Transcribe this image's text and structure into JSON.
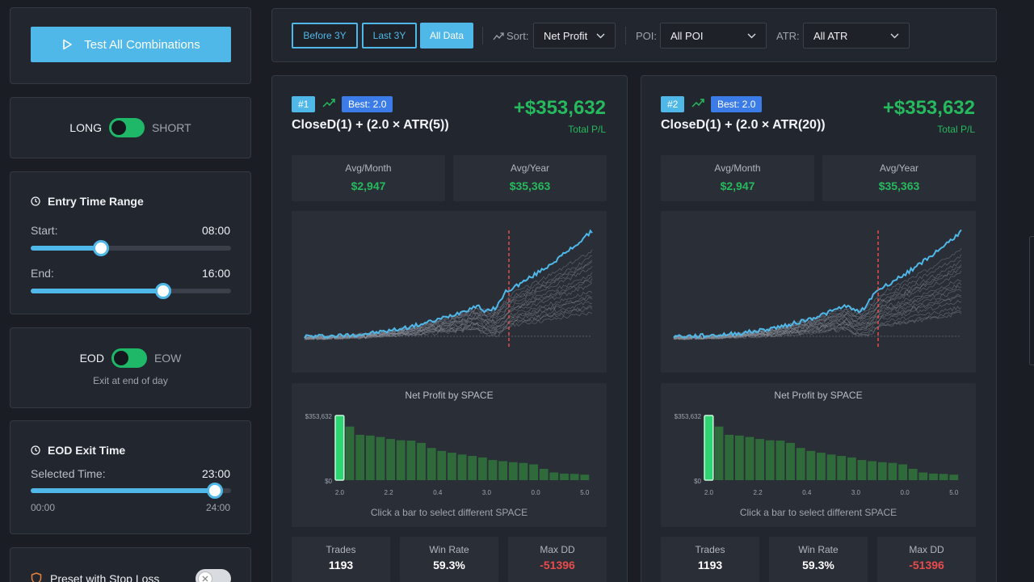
{
  "sidebar": {
    "test_all_label": "Test All Combinations",
    "direction": {
      "left": "LONG",
      "right": "SHORT"
    },
    "entry_range": {
      "title": "Entry Time Range",
      "start_label": "Start:",
      "start_value": "08:00",
      "start_fraction": 0.35,
      "end_label": "End:",
      "end_value": "16:00",
      "end_fraction": 0.66
    },
    "exit_mode": {
      "left": "EOD",
      "right": "EOW",
      "subtitle": "Exit at end of day"
    },
    "eod_exit": {
      "title": "EOD Exit Time",
      "selected_label": "Selected Time:",
      "selected_value": "23:00",
      "fraction": 0.92,
      "min": "00:00",
      "max": "24:00"
    },
    "preset": {
      "label": "Preset with Stop Loss"
    }
  },
  "filters": {
    "buttons": [
      "Before 3Y",
      "Last 3Y",
      "All Data"
    ],
    "active_index": 2,
    "sort_label": "Sort:",
    "sort_value": "Net Profit",
    "poi_label": "POI:",
    "poi_value": "All POI",
    "atr_label": "ATR:",
    "atr_value": "All ATR"
  },
  "cards": [
    {
      "rank": "#1",
      "best": "Best: 2.0",
      "name": "CloseD(1) + (2.0 × ATR(5))",
      "total_pl": "+$353,632",
      "total_pl_label": "Total P/L",
      "avg_month_label": "Avg/Month",
      "avg_month": "$2,947",
      "avg_year_label": "Avg/Year",
      "avg_year": "$35,363",
      "bar_title": "Net Profit by SPACE",
      "bar_hint": "Click a bar to select different SPACE",
      "trades_label": "Trades",
      "trades": "1193",
      "winrate_label": "Win Rate",
      "winrate": "59.3%",
      "maxdd_label": "Max DD",
      "maxdd": "-51396"
    },
    {
      "rank": "#2",
      "best": "Best: 2.0",
      "name": "CloseD(1) + (2.0 × ATR(20))",
      "total_pl": "+$353,632",
      "total_pl_label": "Total P/L",
      "avg_month_label": "Avg/Month",
      "avg_month": "$2,947",
      "avg_year_label": "Avg/Year",
      "avg_year": "$35,363",
      "bar_title": "Net Profit by SPACE",
      "bar_hint": "Click a bar to select different SPACE",
      "trades_label": "Trades",
      "trades": "1193",
      "winrate_label": "Win Rate",
      "winrate": "59.3%",
      "maxdd_label": "Max DD",
      "maxdd": "-51396"
    }
  ],
  "chart_data": [
    {
      "type": "bar",
      "title": "Net Profit by SPACE",
      "y_tick_labels": [
        "$353,632",
        "$0"
      ],
      "x_tick_labels": [
        "2.0",
        "2.2",
        "0.4",
        "3.0",
        "0.0",
        "5.0"
      ],
      "values": [
        353632,
        293000,
        248000,
        244000,
        236000,
        225000,
        218000,
        216000,
        204000,
        176000,
        160000,
        150000,
        140000,
        132000,
        124000,
        110000,
        104000,
        98000,
        94000,
        86000,
        62000,
        42000,
        36000,
        34000,
        30000
      ],
      "highlight_index": 0,
      "color": "#2f6b3a",
      "highlight_color": "#2ed573"
    },
    {
      "type": "bar",
      "title": "Net Profit by SPACE",
      "y_tick_labels": [
        "$353,632",
        "$0"
      ],
      "x_tick_labels": [
        "2.0",
        "2.2",
        "0.4",
        "3.0",
        "0.0",
        "5.0"
      ],
      "values": [
        353632,
        293000,
        248000,
        244000,
        236000,
        225000,
        218000,
        216000,
        204000,
        176000,
        160000,
        150000,
        140000,
        132000,
        124000,
        110000,
        104000,
        98000,
        94000,
        86000,
        62000,
        42000,
        36000,
        34000,
        30000
      ],
      "highlight_index": 0,
      "color": "#2f6b3a",
      "highlight_color": "#2ed573"
    }
  ],
  "colors": {
    "accent": "#4fb8e8",
    "profit": "#27b95e",
    "loss": "#e84c4c",
    "toggle_on": "#1fb868"
  }
}
